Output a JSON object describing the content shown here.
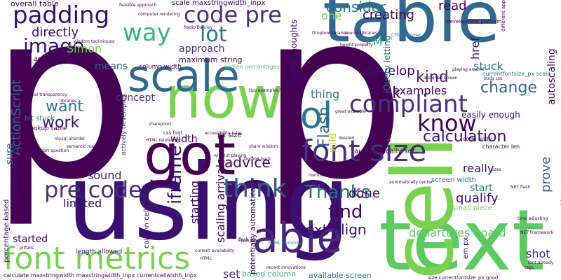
{
  "words": [
    {
      "text": "p",
      "color": "#440154"
    },
    {
      "text": "p",
      "color": "#440154"
    },
    {
      "text": "using",
      "color": "#3b0f70"
    },
    {
      "text": "text",
      "color": "#5ec962"
    },
    {
      "text": "table",
      "color": "#31688e"
    },
    {
      "text": "cell",
      "color": "#7ad151"
    },
    {
      "text": "now",
      "color": "#7ad151"
    },
    {
      "text": "got",
      "color": "#440154"
    },
    {
      "text": "able",
      "color": "#482878"
    },
    {
      "text": "scale",
      "color": "#31688e"
    },
    {
      "text": "font metrics",
      "color": "#7ad151"
    },
    {
      "text": "font size",
      "color": "#46327e"
    },
    {
      "text": "pre code",
      "color": "#46327e"
    },
    {
      "text": "think",
      "color": "#365c8d"
    },
    {
      "text": "code pre",
      "color": "#46327e"
    },
    {
      "text": "padding",
      "color": "#3b0f70"
    },
    {
      "text": "ol",
      "color": "#2a788e"
    },
    {
      "text": "know",
      "color": "#440154"
    },
    {
      "text": "compliant",
      "color": "#46327e"
    },
    {
      "text": "image",
      "color": "#3b0f70"
    },
    {
      "text": "way",
      "color": "#35b779"
    },
    {
      "text": "lot",
      "color": "#2a788e"
    },
    {
      "text": "iframe",
      "color": "#3b0f70"
    },
    {
      "text": "Thanks",
      "color": "#31688e"
    },
    {
      "text": "find",
      "color": "#440154"
    },
    {
      "text": "work",
      "color": "#3b0f70"
    },
    {
      "text": "want",
      "color": "#2a788e"
    },
    {
      "text": "calculation",
      "color": "#3b0f70"
    },
    {
      "text": "text align",
      "color": "#3b0f70"
    },
    {
      "text": "change",
      "color": "#31688e"
    },
    {
      "text": "kind",
      "color": "#482878"
    },
    {
      "text": "link",
      "color": "#440154"
    },
    {
      "text": "Flash",
      "color": "#31688e"
    },
    {
      "text": "advice",
      "color": "#440154"
    },
    {
      "text": "auto scaling",
      "color": "#31688e"
    },
    {
      "text": "done",
      "color": "#440154"
    },
    {
      "text": "read",
      "color": "#440154"
    },
    {
      "text": "consider",
      "color": "#2a788e"
    },
    {
      "text": "creating",
      "color": "#440154"
    },
    {
      "text": "develop",
      "color": "#3b0f70"
    },
    {
      "text": "examples",
      "color": "#440154"
    },
    {
      "text": "ActionScript",
      "color": "#31688e"
    },
    {
      "text": "directly",
      "color": "#3b0f70"
    },
    {
      "text": "approach",
      "color": "#46327e"
    },
    {
      "text": "means",
      "color": "#31688e"
    },
    {
      "text": "Simon",
      "color": "#7ad151"
    },
    {
      "text": "concept",
      "color": "#46327e"
    },
    {
      "text": "sure",
      "color": "#2a788e"
    },
    {
      "text": "sound",
      "color": "#46327e"
    },
    {
      "text": "starting",
      "color": "#3b0f70"
    },
    {
      "text": "limited",
      "color": "#3b0f70"
    },
    {
      "text": "started",
      "color": "#440154"
    },
    {
      "text": "set",
      "color": "#46327e"
    },
    {
      "text": "stuck",
      "color": "#2a788e"
    },
    {
      "text": "really",
      "color": "#3b0f70"
    },
    {
      "text": "start",
      "color": "#2a788e"
    },
    {
      "text": "qualify",
      "color": "#3b0f70"
    },
    {
      "text": "prove",
      "color": "#31688e"
    },
    {
      "text": "shot",
      "color": "#46327e"
    },
    {
      "text": "width",
      "color": "#440154"
    },
    {
      "text": "wild",
      "color": "#b5de2b"
    },
    {
      "text": "thing",
      "color": "#2a788e"
    },
    {
      "text": "one",
      "color": "#7ad151"
    },
    {
      "text": "PM",
      "color": "#1f9e89"
    },
    {
      "text": "href",
      "color": "#3b0f70"
    },
    {
      "text": "autoscaling",
      "color": "#3b0f70"
    },
    {
      "text": "departures board",
      "color": "#5ec962"
    },
    {
      "text": "available screen",
      "color": "#2a788e"
    },
    {
      "text": "based column",
      "color": "#35b779"
    },
    {
      "text": "screen width",
      "color": "#2a788e"
    },
    {
      "text": "small piece",
      "color": "#7ad151"
    },
    {
      "text": "easily enough",
      "color": "#3b0f70"
    },
    {
      "text": "overall table",
      "color": "#440154"
    },
    {
      "text": "sizes according",
      "color": "#440154"
    },
    {
      "text": "column width",
      "color": "#440154"
    },
    {
      "text": "maximum string",
      "color": "#440154"
    },
    {
      "text": "scale maxstringwidth_inpx",
      "color": "#440154"
    },
    {
      "text": "percentage based",
      "color": "#3b0f70"
    },
    {
      "text": "string length",
      "color": "#3b0f70"
    },
    {
      "text": "bit stuck",
      "color": "#2a788e"
    },
    {
      "text": "lookup table",
      "color": "#440154"
    },
    {
      "text": "length allowed",
      "color": "#3b0f70"
    },
    {
      "text": "column cell",
      "color": "#3b0f70"
    },
    {
      "text": "actively developing",
      "color": "#46327e"
    },
    {
      "text": "scaling arrivals",
      "color": "#440154"
    },
    {
      "text": "automatically set",
      "color": "#440154"
    },
    {
      "text": "potentially automatically",
      "color": "#440154"
    },
    {
      "text": "calculate maxstringwidth maxstringwidth_inpx currentcellwidth_inpx",
      "color": "#440154"
    },
    {
      "text": "initial thoughts",
      "color": "#3b0f70"
    },
    {
      "text": "jQuery letting",
      "color": "#2a788e"
    },
    {
      "text": "px size",
      "color": "#440154"
    },
    {
      "text": "css font",
      "color": "#440154"
    },
    {
      "text": "screen percentages",
      "color": "#5ec962"
    },
    {
      "text": "currentfontsize_px scale",
      "color": "#2a788e"
    },
    {
      "text": "character len",
      "color": "#440154"
    },
    {
      "text": "code body",
      "color": "#440154"
    },
    {
      "text": "development platform",
      "color": "#440154"
    },
    {
      "text": "feasible approach",
      "color": "#440154"
    },
    {
      "text": "wisdom techniques",
      "color": "#440154"
    },
    {
      "text": "partial transparency",
      "color": "#440154"
    },
    {
      "text": "share wisdom",
      "color": "#440154"
    },
    {
      "text": "mentioned using",
      "color": "#440154"
    },
    {
      "text": "tips examples",
      "color": "#440154"
    },
    {
      "text": "body css",
      "color": "#440154"
    },
    {
      "text": "NET flash",
      "color": "#440154"
    },
    {
      "text": "assigned screen",
      "color": "#440154"
    },
    {
      "text": "Dropbox libraries",
      "color": "#440154"
    },
    {
      "text": "CSS customer",
      "color": "#2a788e"
    },
    {
      "text": "height property",
      "color": "#440154"
    },
    {
      "text": "computer rendering",
      "color": "#440154"
    },
    {
      "text": "playing around",
      "color": "#440154"
    },
    {
      "text": "font already",
      "color": "#440154"
    },
    {
      "text": "automatically center",
      "color": "#440154"
    },
    {
      "text": "different approach",
      "color": "#440154"
    },
    {
      "text": "Flash IDE",
      "color": "#440154"
    },
    {
      "text": "HTML elements",
      "color": "#1f9e89"
    },
    {
      "text": "accessibility rules",
      "color": "#440154"
    },
    {
      "text": "without playing",
      "color": "#440154"
    },
    {
      "text": "Dropbit back",
      "color": "#440154"
    },
    {
      "text": "mysql ahorder",
      "color": "#440154"
    },
    {
      "text": "sharepoint",
      "color": "#440154"
    },
    {
      "text": "size currentfontsize_px good",
      "color": "#440154"
    },
    {
      "text": "em px",
      "color": "#440154"
    },
    {
      "text": "NET Framework",
      "color": "#440154"
    },
    {
      "text": "current availability",
      "color": "#440154"
    },
    {
      "text": "flash 3D",
      "color": "#440154"
    },
    {
      "text": "part question",
      "color": "#440154"
    },
    {
      "text": "great example",
      "color": "#440154"
    },
    {
      "text": "semantic markup",
      "color": "#440154"
    },
    {
      "text": "coming similar",
      "color": "#440154"
    },
    {
      "text": "source libraries",
      "color": "#440154"
    },
    {
      "text": "Radio Barcley",
      "color": "#440154"
    },
    {
      "text": "pitfalls",
      "color": "#440154"
    },
    {
      "text": "HTML rendering",
      "color": "#440154"
    },
    {
      "text": "time adjusting",
      "color": "#440154"
    },
    {
      "text": "recent innovations",
      "color": "#440154"
    },
    {
      "text": "libraries",
      "color": "#440154"
    },
    {
      "text": "desired",
      "color": "#440154"
    },
    {
      "text": "HTML",
      "color": "#440154"
    },
    {
      "text": "sizes",
      "color": "#440154"
    },
    {
      "text": "tags",
      "color": "#440154"
    }
  ]
}
